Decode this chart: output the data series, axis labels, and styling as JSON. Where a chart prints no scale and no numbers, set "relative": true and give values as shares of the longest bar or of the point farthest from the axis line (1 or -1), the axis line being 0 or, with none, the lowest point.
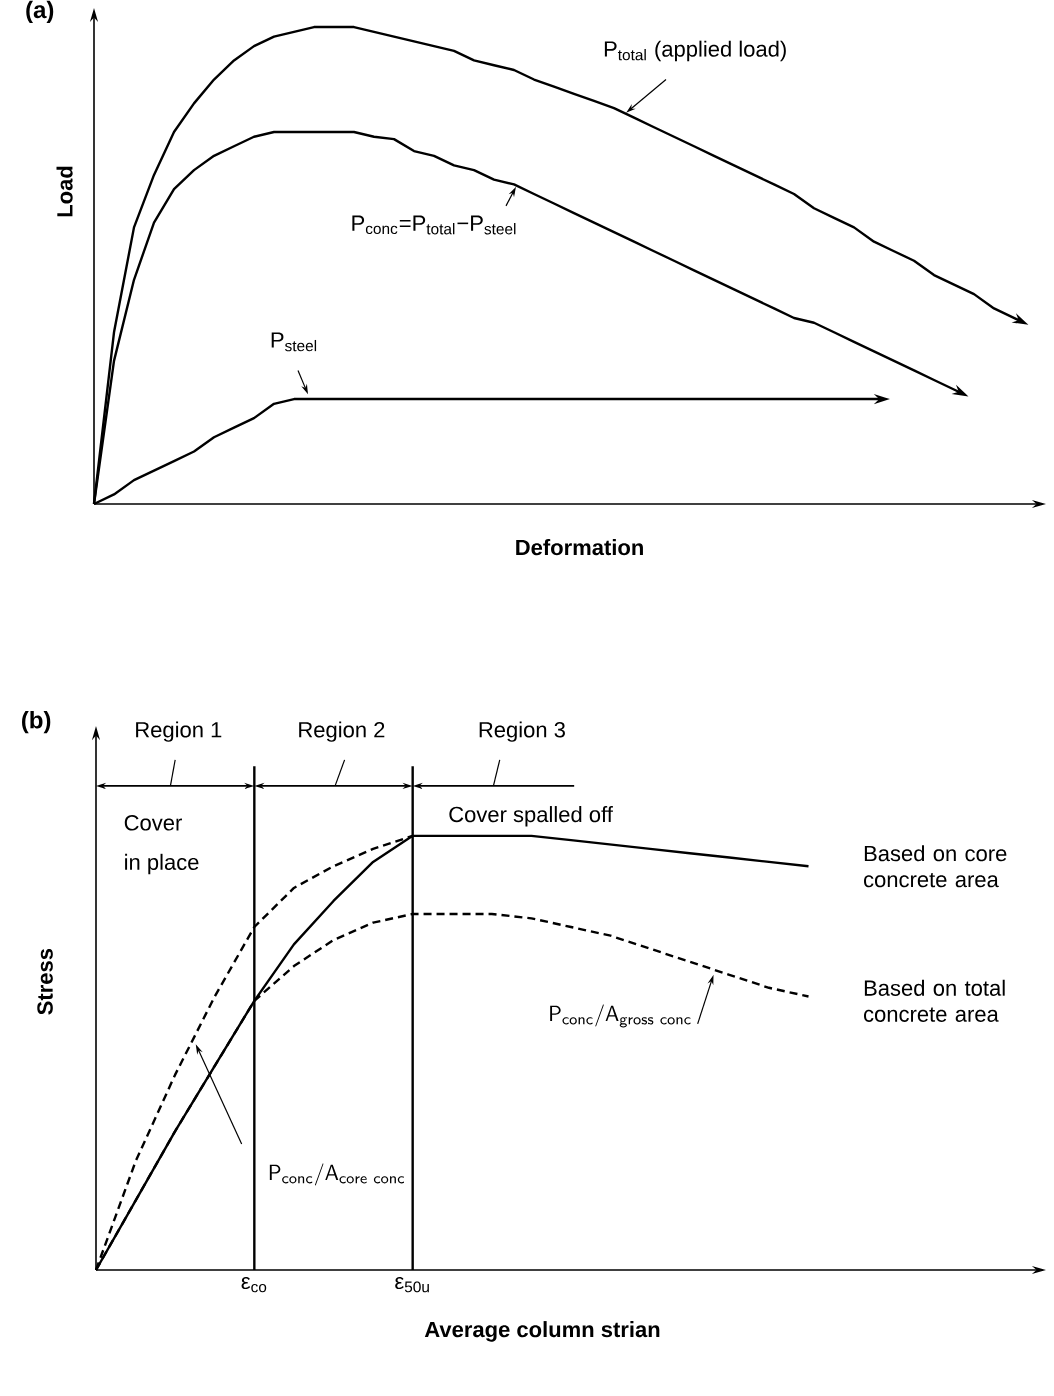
{
  "chart_data": [
    {
      "type": "line",
      "title": "(a)",
      "xlabel": "Deformation",
      "ylabel": "Load",
      "relative": true,
      "categories": [
        null,
        null,
        null,
        null,
        null,
        null,
        null,
        null,
        null,
        null,
        null,
        null,
        null,
        null,
        null,
        null,
        null,
        null,
        null,
        null,
        null,
        null,
        null,
        null,
        null,
        null,
        null,
        null,
        null,
        null,
        null,
        null,
        null,
        null,
        null,
        null,
        null,
        null,
        null,
        null,
        null,
        null,
        null,
        null,
        null,
        null,
        null,
        null
      ],
      "series": [
        {
          "name": "P$_{total}$ (applied load)",
          "color": "#000000",
          "values": [
            0,
            0.36,
            0.58,
            0.69,
            0.78,
            0.84,
            0.89,
            0.93,
            0.96,
            0.98,
            0.99,
            1.0,
            1.0,
            1.0,
            0.99,
            0.98,
            0.97,
            0.96,
            0.95,
            0.93,
            0.92,
            0.91,
            0.89,
            0.875,
            0.86,
            0.845,
            0.83,
            0.81,
            0.79,
            0.77,
            0.75,
            0.73,
            0.71,
            0.69,
            0.67,
            0.65,
            0.62,
            0.6,
            0.58,
            0.55,
            0.53,
            0.51,
            0.48,
            0.46,
            0.44,
            0.41,
            0.39,
            null
          ]
        },
        {
          "name": "P$_{conc}$=P$_{total}$−P$_{steel}$",
          "color": "#000000",
          "values": [
            0,
            0.3,
            0.47,
            0.59,
            0.66,
            0.7,
            0.73,
            0.75,
            0.77,
            0.78,
            0.78,
            0.78,
            0.78,
            0.78,
            0.77,
            0.765,
            0.74,
            0.73,
            0.71,
            0.7,
            0.68,
            0.67,
            0.65,
            0.63,
            0.61,
            0.59,
            0.57,
            0.55,
            0.53,
            0.51,
            0.49,
            0.47,
            0.45,
            0.43,
            0.41,
            0.39,
            0.38,
            0.36,
            0.34,
            0.32,
            0.3,
            0.28,
            0.26,
            0.24,
            null,
            null,
            null,
            null
          ]
        },
        {
          "name": "P$_{steel}$",
          "color": "#000000",
          "values": [
            0,
            0.02,
            0.05,
            0.07,
            0.09,
            0.11,
            0.14,
            0.16,
            0.18,
            0.21,
            0.22,
            0.22,
            0.22,
            0.22,
            0.22,
            0.22,
            0.22,
            0.22,
            0.22,
            0.22,
            0.22,
            0.22,
            0.22,
            0.22,
            0.22,
            0.22,
            0.22,
            0.22,
            0.22,
            0.22,
            0.22,
            0.22,
            0.22,
            0.22,
            0.22,
            0.22,
            0.22,
            0.22,
            0.22,
            0.22,
            null,
            null,
            null,
            null,
            null,
            null,
            null,
            null
          ]
        }
      ]
    },
    {
      "type": "line",
      "title": "(b)",
      "xlabel": "Average column strian",
      "ylabel": "Stress",
      "relative": true,
      "categories": [
        null,
        null,
        null,
        null,
        "ε$_{co}$",
        null,
        null,
        null,
        "ε$_{50u}$",
        null,
        null,
        null,
        null,
        null,
        null,
        null,
        null,
        null,
        null
      ],
      "series": [
        {
          "name": "Based on core concrete area",
          "color": "#000000",
          "line_style": "solid",
          "values": [
            0,
            0.16,
            0.32,
            0.47,
            0.62,
            0.75,
            0.85,
            0.94,
            1.0,
            1.0,
            1.0,
            1.0,
            0.99,
            0.98,
            0.97,
            0.96,
            0.95,
            0.94,
            0.93
          ]
        },
        {
          "color": "#000000",
          "line_style": "dashed",
          "values": [
            0,
            0.25,
            0.45,
            0.63,
            0.79,
            0.88,
            0.93,
            0.97,
            1.0,
            null,
            null,
            null,
            null,
            null,
            null,
            null,
            null,
            null,
            null
          ]
        },
        {
          "name": "Based on total concrete area",
          "color": "#000000",
          "line_style": "dashed",
          "values": [
            0,
            0.16,
            0.32,
            0.47,
            0.62,
            0.7,
            0.76,
            0.8,
            0.82,
            0.82,
            0.82,
            0.81,
            0.79,
            0.77,
            0.74,
            0.71,
            0.68,
            0.65,
            0.63
          ]
        }
      ],
      "ref_lines": [
        {
          "axis": "x",
          "value": "ε$_{co}$"
        },
        {
          "axis": "x",
          "value": "ε$_{50u}$"
        }
      ],
      "annotations": [
        "Region 1",
        "Region 2",
        "Region 3",
        "Cover",
        "in place",
        "Cover spalled off",
        "\\mathsf{P_{conc}/A_{gross\\ conc}}",
        "\\mathsf{P_{conc}/A_{core\\ conc}}"
      ]
    }
  ]
}
